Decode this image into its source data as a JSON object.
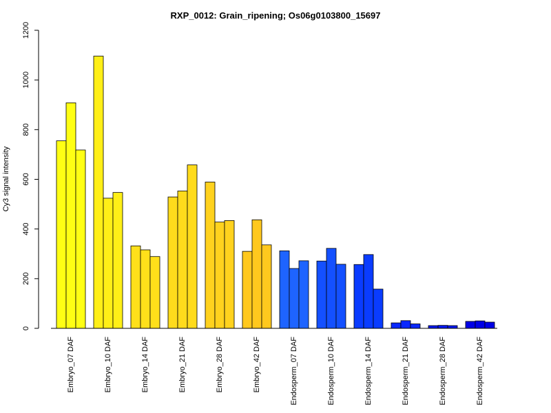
{
  "chart_data": {
    "type": "bar",
    "title": "RXP_0012: Grain_ripening; Os06g0103800_15697",
    "xlabel": "",
    "ylabel": "Cy3 signal intensity",
    "ylim": [
      0,
      1200
    ],
    "yticks": [
      0,
      200,
      400,
      600,
      800,
      1000,
      1200
    ],
    "grid": false,
    "groups": [
      {
        "label": "Embryo_07 DAF",
        "values": [
          755,
          908,
          718
        ],
        "color": "#ffff14"
      },
      {
        "label": "Embryo_10 DAF",
        "values": [
          1096,
          524,
          547
        ],
        "color": "#ffef17"
      },
      {
        "label": "Embryo_14 DAF",
        "values": [
          332,
          316,
          289
        ],
        "color": "#ffe01a"
      },
      {
        "label": "Embryo_21 DAF",
        "values": [
          529,
          553,
          658
        ],
        "color": "#ffdb1c"
      },
      {
        "label": "Embryo_28 DAF",
        "values": [
          589,
          428,
          434
        ],
        "color": "#ffd21e"
      },
      {
        "label": "Embryo_42 DAF",
        "values": [
          310,
          437,
          336
        ],
        "color": "#ffc81e"
      },
      {
        "label": "Endosperm_07 DAF",
        "values": [
          312,
          241,
          272
        ],
        "color": "#1e64ff"
      },
      {
        "label": "Endosperm_10 DAF",
        "values": [
          271,
          322,
          258
        ],
        "color": "#1450ff"
      },
      {
        "label": "Endosperm_14 DAF",
        "values": [
          257,
          297,
          158
        ],
        "color": "#0a3cff"
      },
      {
        "label": "Endosperm_21 DAF",
        "values": [
          22,
          31,
          18
        ],
        "color": "#0a28ff"
      },
      {
        "label": "Endosperm_28 DAF",
        "values": [
          11,
          12,
          11
        ],
        "color": "#0518f0"
      },
      {
        "label": "Endosperm_42 DAF",
        "values": [
          28,
          30,
          25
        ],
        "color": "#0000e6"
      }
    ]
  }
}
